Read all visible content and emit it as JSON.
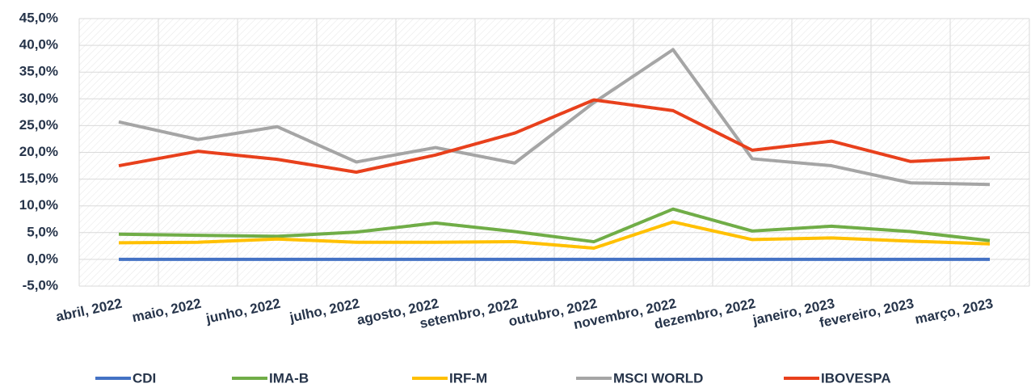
{
  "chart_data": {
    "type": "line",
    "categories": [
      "abril, 2022",
      "maio, 2022",
      "junho, 2022",
      "julho, 2022",
      "agosto, 2022",
      "setembro, 2022",
      "outubro, 2022",
      "novembro, 2022",
      "dezembro, 2022",
      "janeiro, 2023",
      "fevereiro, 2023",
      "março, 2023"
    ],
    "series": [
      {
        "name": "CDI",
        "color": "#4472c4",
        "values": [
          0,
          0,
          0,
          0,
          0,
          0,
          0,
          0,
          0,
          0,
          0,
          0
        ]
      },
      {
        "name": "IMA-B",
        "color": "#70ad47",
        "values": [
          4.7,
          4.5,
          4.3,
          5.1,
          6.8,
          5.2,
          3.3,
          9.4,
          5.3,
          6.2,
          5.2,
          3.5
        ]
      },
      {
        "name": "IRF-M",
        "color": "#ffc000",
        "values": [
          3.1,
          3.2,
          3.8,
          3.2,
          3.2,
          3.3,
          2.1,
          7.0,
          3.7,
          4.0,
          3.4,
          2.9
        ]
      },
      {
        "name": "MSCI WORLD",
        "color": "#a5a5a5",
        "values": [
          25.7,
          22.4,
          24.8,
          18.2,
          20.9,
          18.0,
          29.3,
          39.2,
          18.8,
          17.5,
          14.3,
          14.0
        ]
      },
      {
        "name": "IBOVESPA",
        "color": "#e8401c",
        "values": [
          17.5,
          20.2,
          18.7,
          16.3,
          19.5,
          23.6,
          29.8,
          27.8,
          20.4,
          22.1,
          18.3,
          19.0
        ]
      }
    ],
    "ylim": [
      -5,
      45
    ],
    "yticks": [
      {
        "value": -5,
        "label": "-5,0%"
      },
      {
        "value": 0,
        "label": "0,0%"
      },
      {
        "value": 5,
        "label": "5,0%"
      },
      {
        "value": 10,
        "label": "10,0%"
      },
      {
        "value": 15,
        "label": "15,0%"
      },
      {
        "value": 20,
        "label": "20,0%"
      },
      {
        "value": 25,
        "label": "25,0%"
      },
      {
        "value": 30,
        "label": "30,0%"
      },
      {
        "value": 35,
        "label": "35,0%"
      },
      {
        "value": 40,
        "label": "40,0%"
      },
      {
        "value": 45,
        "label": "45,0%"
      }
    ],
    "grid": true,
    "legend": "bottom"
  }
}
